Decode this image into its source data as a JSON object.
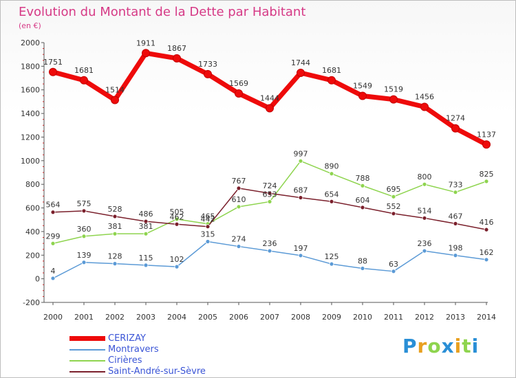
{
  "title": "Evolution du Montant de la Dette par Habitant",
  "subtitle": "(en €)",
  "logo": "Proxiti",
  "chart_data": {
    "type": "line",
    "title": "Evolution du Montant de la Dette par Habitant",
    "ylabel": "(en €)",
    "xlabel": "",
    "x": [
      "2000",
      "2001",
      "2002",
      "2003",
      "2004",
      "2005",
      "2006",
      "2007",
      "2008",
      "2009",
      "2010",
      "2011",
      "2012",
      "2013",
      "2014"
    ],
    "ylim": [
      -200,
      2000
    ],
    "yticks": [
      "-200",
      "0",
      "200",
      "400",
      "600",
      "800",
      "1000",
      "1200",
      "1400",
      "1600",
      "1800",
      "2000"
    ],
    "grid": false,
    "legend_position": "bottom",
    "series": [
      {
        "name": "CERIZAY",
        "color": "#ee0a0a",
        "values": [
          1751,
          1681,
          1514,
          1911,
          1867,
          1733,
          1569,
          1444,
          1744,
          1681,
          1549,
          1519,
          1456,
          1274,
          1137
        ]
      },
      {
        "name": "Montravers",
        "color": "#5b9ad6",
        "values": [
          4,
          139,
          128,
          115,
          102,
          315,
          274,
          236,
          197,
          125,
          88,
          63,
          236,
          198,
          162
        ]
      },
      {
        "name": "Cirières",
        "color": "#8ed44e",
        "values": [
          299,
          360,
          381,
          381,
          505,
          465,
          610,
          653,
          997,
          890,
          788,
          695,
          800,
          733,
          825
        ]
      },
      {
        "name": "Saint-André-sur-Sèvre",
        "color": "#7a1f2b",
        "values": [
          564,
          575,
          528,
          486,
          462,
          442,
          767,
          724,
          687,
          654,
          604,
          552,
          514,
          467,
          416
        ]
      }
    ]
  }
}
